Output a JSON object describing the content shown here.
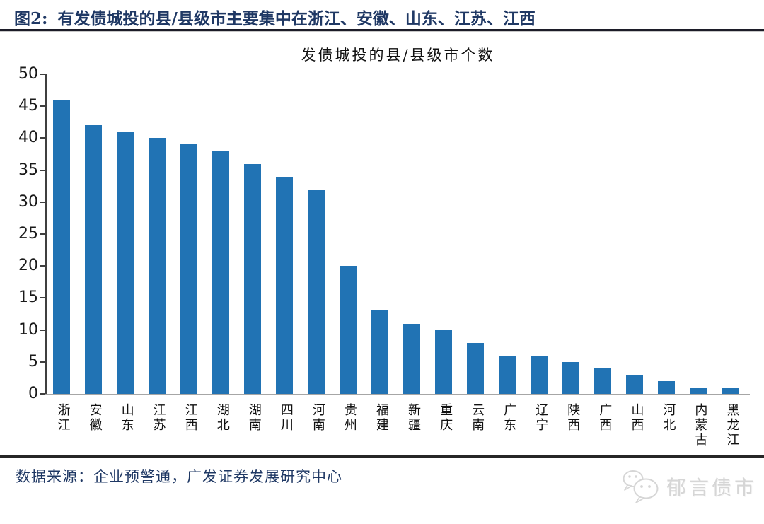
{
  "figure": {
    "label": "图2:",
    "title": "有发债城投的县/县级市主要集中在浙江、安徽、山东、江苏、江西"
  },
  "chart_data": {
    "type": "bar",
    "title": "发债城投的县/县级市个数",
    "categories": [
      "浙江",
      "安徽",
      "山东",
      "江苏",
      "江西",
      "湖北",
      "湖南",
      "四川",
      "河南",
      "贵州",
      "福建",
      "新疆",
      "重庆",
      "云南",
      "广东",
      "辽宁",
      "陕西",
      "广西",
      "山西",
      "河北",
      "内蒙古",
      "黑龙江"
    ],
    "values": [
      46,
      42,
      41,
      40,
      39,
      38,
      36,
      34,
      32,
      20,
      13,
      11,
      10,
      8,
      6,
      6,
      5,
      4,
      3,
      2,
      1,
      1
    ],
    "xlabel": "",
    "ylabel": "",
    "ylim": [
      0,
      50
    ],
    "ytick_step": 5,
    "grid": false,
    "legend": false,
    "bar_color": "#2173B4"
  },
  "source": {
    "text": "数据来源：企业预警通，广发证券发展研究中心"
  },
  "watermark": {
    "icon": "wechat-icon",
    "text": "郁言债市"
  },
  "colors": {
    "title_navy": "#1F3864",
    "bar_blue": "#2173B4",
    "x_axis_gray": "#A6A6A6",
    "y_axis_dark": "#3F3F3F",
    "watermark_gray": "#D6D6D6"
  }
}
